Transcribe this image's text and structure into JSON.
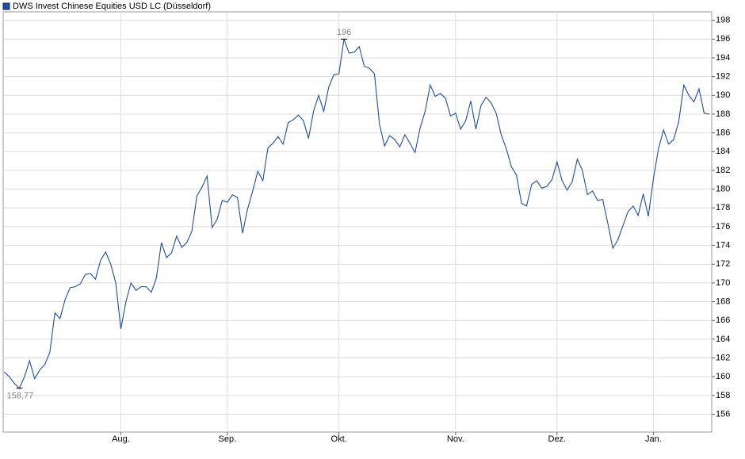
{
  "chart_data": {
    "type": "line",
    "series": [
      {
        "name": "DWS Invest Chinese Equities USD LC (Düsseldorf)",
        "color": "#1f4e9c",
        "values": [
          160.5,
          160.0,
          159.3,
          158.77,
          160.0,
          161.7,
          159.8,
          160.7,
          161.3,
          162.6,
          166.8,
          166.2,
          168.2,
          169.5,
          169.6,
          169.9,
          170.9,
          171.0,
          170.4,
          172.4,
          173.3,
          172.0,
          170.0,
          165.1,
          168.0,
          170.0,
          169.2,
          169.6,
          169.6,
          169.0,
          170.5,
          174.3,
          172.7,
          173.2,
          175.0,
          173.8,
          174.3,
          175.5,
          179.3,
          180.2,
          181.4,
          175.9,
          176.8,
          178.8,
          178.6,
          179.4,
          179.1,
          175.3,
          177.9,
          179.8,
          181.9,
          180.9,
          184.4,
          184.9,
          185.6,
          184.8,
          187.1,
          187.4,
          187.9,
          187.3,
          185.4,
          188.3,
          190.0,
          188.3,
          190.9,
          192.2,
          192.3,
          196.0,
          194.5,
          194.6,
          195.2,
          193.1,
          192.9,
          192.3,
          186.9,
          184.6,
          185.7,
          185.3,
          184.5,
          185.8,
          184.9,
          183.9,
          186.5,
          188.3,
          191.1,
          189.9,
          190.2,
          189.7,
          187.8,
          188.1,
          186.4,
          187.3,
          189.4,
          186.4,
          188.9,
          189.8,
          189.2,
          188.1,
          185.8,
          184.3,
          182.4,
          181.5,
          178.5,
          178.2,
          180.5,
          180.9,
          180.1,
          180.3,
          181.0,
          182.9,
          180.9,
          179.9,
          180.8,
          183.2,
          182.0,
          179.4,
          179.8,
          178.8,
          178.9,
          176.4,
          173.7,
          174.6,
          176.1,
          177.6,
          178.2,
          177.2,
          179.5,
          177.1,
          181.1,
          184.3,
          186.3,
          184.8,
          185.3,
          187.2,
          191.1,
          190.0,
          189.3,
          190.7,
          188.1,
          188.0
        ]
      }
    ],
    "annotations": [
      {
        "text": "196",
        "x": 67,
        "y": 196
      },
      {
        "text": "158,77",
        "x": 3,
        "y": 158.77
      }
    ],
    "xlim": [
      -0.2,
      139.5
    ],
    "xticks": [
      {
        "value": 23,
        "label": "Aug."
      },
      {
        "value": 44,
        "label": "Sep."
      },
      {
        "value": 66,
        "label": "Okt."
      },
      {
        "value": 89,
        "label": "Nov."
      },
      {
        "value": 109,
        "label": "Dez."
      },
      {
        "value": 128,
        "label": "Jan."
      }
    ],
    "ylim": [
      154.1,
      198.9
    ],
    "yticks": [
      156,
      158,
      160,
      162,
      164,
      166,
      168,
      170,
      172,
      174,
      176,
      178,
      180,
      182,
      184,
      186,
      188,
      190,
      192,
      194,
      196,
      198
    ],
    "grid": true
  }
}
